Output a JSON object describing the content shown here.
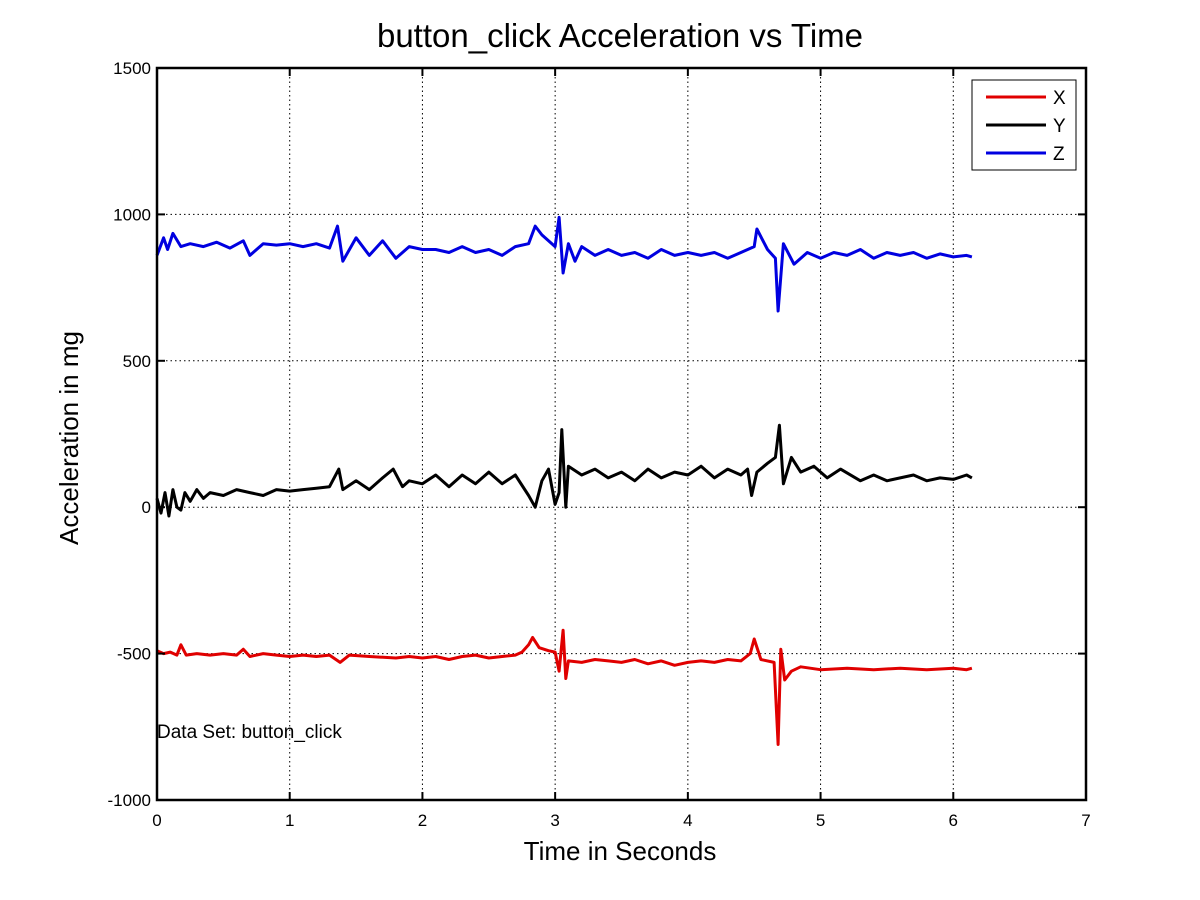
{
  "chart_data": {
    "type": "line",
    "title": "button_click Acceleration vs Time",
    "xlabel": "Time in Seconds",
    "ylabel": "Acceleration in mg",
    "xlim": [
      0,
      7
    ],
    "ylim": [
      -1000,
      1500
    ],
    "x_ticks": [
      "0",
      "1",
      "2",
      "3",
      "4",
      "5",
      "6",
      "7"
    ],
    "y_ticks": [
      "-1000",
      "-500",
      "0",
      "500",
      "1000",
      "1500"
    ],
    "grid": true,
    "legend_position": "top-right",
    "annotation": "Data Set: button_click",
    "series": [
      {
        "name": "X",
        "color": "#e00000",
        "points": [
          [
            0.0,
            -490
          ],
          [
            0.05,
            -500
          ],
          [
            0.1,
            -495
          ],
          [
            0.15,
            -505
          ],
          [
            0.18,
            -470
          ],
          [
            0.22,
            -505
          ],
          [
            0.3,
            -500
          ],
          [
            0.4,
            -505
          ],
          [
            0.5,
            -500
          ],
          [
            0.6,
            -505
          ],
          [
            0.65,
            -485
          ],
          [
            0.7,
            -510
          ],
          [
            0.8,
            -500
          ],
          [
            0.9,
            -505
          ],
          [
            1.0,
            -510
          ],
          [
            1.1,
            -505
          ],
          [
            1.2,
            -510
          ],
          [
            1.3,
            -505
          ],
          [
            1.38,
            -530
          ],
          [
            1.45,
            -505
          ],
          [
            1.6,
            -510
          ],
          [
            1.8,
            -515
          ],
          [
            1.9,
            -510
          ],
          [
            2.0,
            -515
          ],
          [
            2.1,
            -510
          ],
          [
            2.2,
            -520
          ],
          [
            2.3,
            -510
          ],
          [
            2.4,
            -505
          ],
          [
            2.5,
            -515
          ],
          [
            2.6,
            -510
          ],
          [
            2.7,
            -505
          ],
          [
            2.75,
            -495
          ],
          [
            2.8,
            -470
          ],
          [
            2.83,
            -445
          ],
          [
            2.88,
            -480
          ],
          [
            2.95,
            -490
          ],
          [
            3.0,
            -495
          ],
          [
            3.03,
            -560
          ],
          [
            3.06,
            -420
          ],
          [
            3.08,
            -585
          ],
          [
            3.1,
            -525
          ],
          [
            3.2,
            -530
          ],
          [
            3.3,
            -520
          ],
          [
            3.4,
            -525
          ],
          [
            3.5,
            -530
          ],
          [
            3.6,
            -520
          ],
          [
            3.7,
            -535
          ],
          [
            3.8,
            -525
          ],
          [
            3.9,
            -540
          ],
          [
            4.0,
            -530
          ],
          [
            4.1,
            -525
          ],
          [
            4.2,
            -530
          ],
          [
            4.3,
            -520
          ],
          [
            4.4,
            -525
          ],
          [
            4.47,
            -500
          ],
          [
            4.5,
            -450
          ],
          [
            4.55,
            -520
          ],
          [
            4.65,
            -530
          ],
          [
            4.68,
            -810
          ],
          [
            4.7,
            -485
          ],
          [
            4.73,
            -590
          ],
          [
            4.78,
            -560
          ],
          [
            4.85,
            -545
          ],
          [
            5.0,
            -555
          ],
          [
            5.2,
            -550
          ],
          [
            5.4,
            -555
          ],
          [
            5.6,
            -550
          ],
          [
            5.8,
            -555
          ],
          [
            6.0,
            -550
          ],
          [
            6.1,
            -555
          ],
          [
            6.14,
            -550
          ]
        ]
      },
      {
        "name": "Y",
        "color": "#000000",
        "points": [
          [
            0.0,
            30
          ],
          [
            0.03,
            -20
          ],
          [
            0.06,
            50
          ],
          [
            0.09,
            -30
          ],
          [
            0.12,
            60
          ],
          [
            0.15,
            0
          ],
          [
            0.18,
            -10
          ],
          [
            0.21,
            50
          ],
          [
            0.25,
            20
          ],
          [
            0.3,
            60
          ],
          [
            0.35,
            30
          ],
          [
            0.4,
            50
          ],
          [
            0.5,
            40
          ],
          [
            0.6,
            60
          ],
          [
            0.7,
            50
          ],
          [
            0.8,
            40
          ],
          [
            0.9,
            60
          ],
          [
            1.0,
            55
          ],
          [
            1.1,
            60
          ],
          [
            1.2,
            65
          ],
          [
            1.3,
            70
          ],
          [
            1.37,
            130
          ],
          [
            1.4,
            60
          ],
          [
            1.5,
            90
          ],
          [
            1.6,
            60
          ],
          [
            1.7,
            100
          ],
          [
            1.78,
            130
          ],
          [
            1.85,
            70
          ],
          [
            1.9,
            90
          ],
          [
            2.0,
            80
          ],
          [
            2.1,
            110
          ],
          [
            2.2,
            70
          ],
          [
            2.3,
            110
          ],
          [
            2.4,
            80
          ],
          [
            2.5,
            120
          ],
          [
            2.6,
            80
          ],
          [
            2.7,
            110
          ],
          [
            2.8,
            40
          ],
          [
            2.85,
            0
          ],
          [
            2.9,
            90
          ],
          [
            2.95,
            130
          ],
          [
            3.0,
            10
          ],
          [
            3.03,
            50
          ],
          [
            3.05,
            265
          ],
          [
            3.08,
            0
          ],
          [
            3.1,
            140
          ],
          [
            3.2,
            110
          ],
          [
            3.3,
            130
          ],
          [
            3.4,
            100
          ],
          [
            3.5,
            120
          ],
          [
            3.6,
            90
          ],
          [
            3.7,
            130
          ],
          [
            3.8,
            100
          ],
          [
            3.9,
            120
          ],
          [
            4.0,
            110
          ],
          [
            4.1,
            140
          ],
          [
            4.2,
            100
          ],
          [
            4.3,
            130
          ],
          [
            4.4,
            110
          ],
          [
            4.45,
            130
          ],
          [
            4.48,
            40
          ],
          [
            4.52,
            120
          ],
          [
            4.6,
            150
          ],
          [
            4.66,
            170
          ],
          [
            4.69,
            280
          ],
          [
            4.72,
            80
          ],
          [
            4.78,
            170
          ],
          [
            4.85,
            120
          ],
          [
            4.95,
            140
          ],
          [
            5.05,
            100
          ],
          [
            5.15,
            130
          ],
          [
            5.3,
            90
          ],
          [
            5.4,
            110
          ],
          [
            5.5,
            90
          ],
          [
            5.6,
            100
          ],
          [
            5.7,
            110
          ],
          [
            5.8,
            90
          ],
          [
            5.9,
            100
          ],
          [
            6.0,
            95
          ],
          [
            6.1,
            110
          ],
          [
            6.14,
            100
          ]
        ]
      },
      {
        "name": "Z",
        "color": "#0000e0",
        "points": [
          [
            0.0,
            860
          ],
          [
            0.05,
            920
          ],
          [
            0.08,
            880
          ],
          [
            0.12,
            935
          ],
          [
            0.18,
            890
          ],
          [
            0.25,
            900
          ],
          [
            0.35,
            890
          ],
          [
            0.45,
            905
          ],
          [
            0.55,
            885
          ],
          [
            0.65,
            910
          ],
          [
            0.7,
            860
          ],
          [
            0.8,
            900
          ],
          [
            0.9,
            895
          ],
          [
            1.0,
            900
          ],
          [
            1.1,
            890
          ],
          [
            1.2,
            900
          ],
          [
            1.3,
            885
          ],
          [
            1.36,
            960
          ],
          [
            1.4,
            840
          ],
          [
            1.5,
            920
          ],
          [
            1.6,
            860
          ],
          [
            1.7,
            910
          ],
          [
            1.8,
            850
          ],
          [
            1.9,
            890
          ],
          [
            2.0,
            880
          ],
          [
            2.1,
            880
          ],
          [
            2.2,
            870
          ],
          [
            2.3,
            890
          ],
          [
            2.4,
            870
          ],
          [
            2.5,
            880
          ],
          [
            2.6,
            860
          ],
          [
            2.7,
            890
          ],
          [
            2.8,
            900
          ],
          [
            2.85,
            960
          ],
          [
            2.9,
            930
          ],
          [
            3.0,
            890
          ],
          [
            3.03,
            990
          ],
          [
            3.06,
            800
          ],
          [
            3.1,
            900
          ],
          [
            3.15,
            840
          ],
          [
            3.2,
            890
          ],
          [
            3.3,
            860
          ],
          [
            3.4,
            880
          ],
          [
            3.5,
            860
          ],
          [
            3.6,
            870
          ],
          [
            3.7,
            850
          ],
          [
            3.8,
            880
          ],
          [
            3.9,
            860
          ],
          [
            4.0,
            870
          ],
          [
            4.1,
            860
          ],
          [
            4.2,
            870
          ],
          [
            4.3,
            850
          ],
          [
            4.4,
            870
          ],
          [
            4.5,
            890
          ],
          [
            4.52,
            950
          ],
          [
            4.6,
            880
          ],
          [
            4.66,
            850
          ],
          [
            4.68,
            670
          ],
          [
            4.72,
            900
          ],
          [
            4.8,
            830
          ],
          [
            4.9,
            870
          ],
          [
            5.0,
            850
          ],
          [
            5.1,
            870
          ],
          [
            5.2,
            860
          ],
          [
            5.3,
            880
          ],
          [
            5.4,
            850
          ],
          [
            5.5,
            870
          ],
          [
            5.6,
            860
          ],
          [
            5.7,
            870
          ],
          [
            5.8,
            850
          ],
          [
            5.9,
            865
          ],
          [
            6.0,
            855
          ],
          [
            6.1,
            860
          ],
          [
            6.14,
            855
          ]
        ]
      }
    ]
  }
}
